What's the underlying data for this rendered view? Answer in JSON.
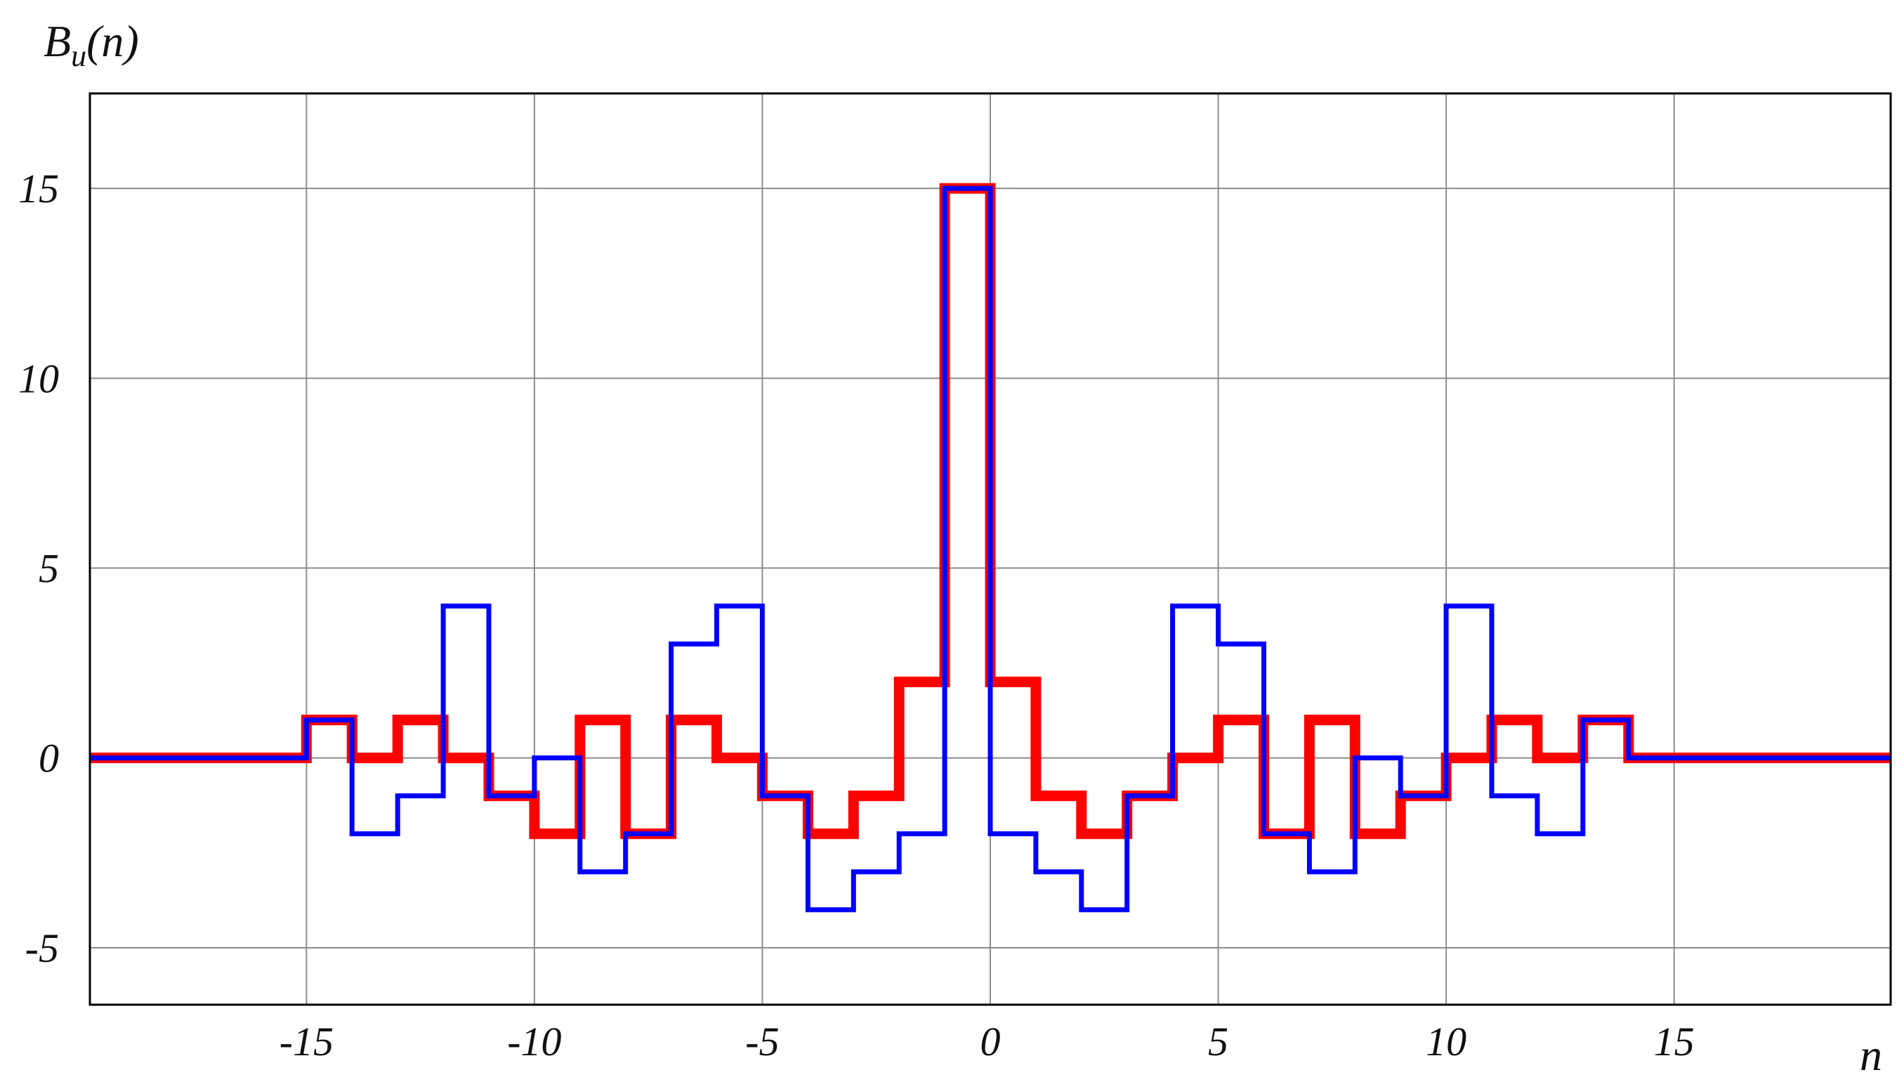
{
  "chart_data": {
    "type": "line",
    "step": true,
    "ylabel_main": "B",
    "ylabel_sub": "u",
    "ylabel_arg": "(n)",
    "xlabel": "n",
    "xlim": [
      -19.75,
      19.75
    ],
    "ylim": [
      -6.5,
      17.5
    ],
    "xticks": [
      -15,
      -10,
      -5,
      0,
      5,
      10,
      15
    ],
    "xtick_labels": [
      "-15",
      "-10",
      "-5",
      "0",
      "5",
      "10",
      "15"
    ],
    "yticks": [
      -5,
      0,
      5,
      10,
      15
    ],
    "ytick_labels": [
      "-5",
      "0",
      "5",
      "10",
      "15"
    ],
    "grid": true,
    "series": [
      {
        "color": "#ff0000",
        "line": "thick",
        "x": [
          -15,
          -14,
          -13,
          -12,
          -11,
          -10,
          -9,
          -8,
          -7,
          -6,
          -5,
          -4,
          -3,
          -2,
          -1,
          0,
          1,
          2,
          3,
          4,
          5,
          6,
          7,
          8,
          9,
          10,
          11,
          12,
          13
        ],
        "y": [
          1,
          0,
          1,
          0,
          -1,
          -2,
          1,
          -2,
          1,
          0,
          -1,
          -2,
          -1,
          2,
          15,
          2,
          -1,
          -2,
          -1,
          0,
          1,
          -2,
          1,
          -2,
          -1,
          0,
          1,
          0,
          1
        ]
      },
      {
        "color": "#0000ff",
        "line": "thin",
        "x": [
          -15,
          -14,
          -13,
          -12,
          -11,
          -10,
          -9,
          -8,
          -7,
          -6,
          -5,
          -4,
          -3,
          -2,
          -1,
          0,
          1,
          2,
          3,
          4,
          5,
          6,
          7,
          8,
          9,
          10,
          11,
          12,
          13
        ],
        "y": [
          1,
          -2,
          -1,
          4,
          -1,
          0,
          -3,
          -2,
          3,
          4,
          -1,
          -4,
          -3,
          -2,
          15,
          -2,
          -3,
          -4,
          -1,
          4,
          3,
          -2,
          -3,
          0,
          -1,
          4,
          -1,
          -2,
          1
        ]
      }
    ]
  }
}
